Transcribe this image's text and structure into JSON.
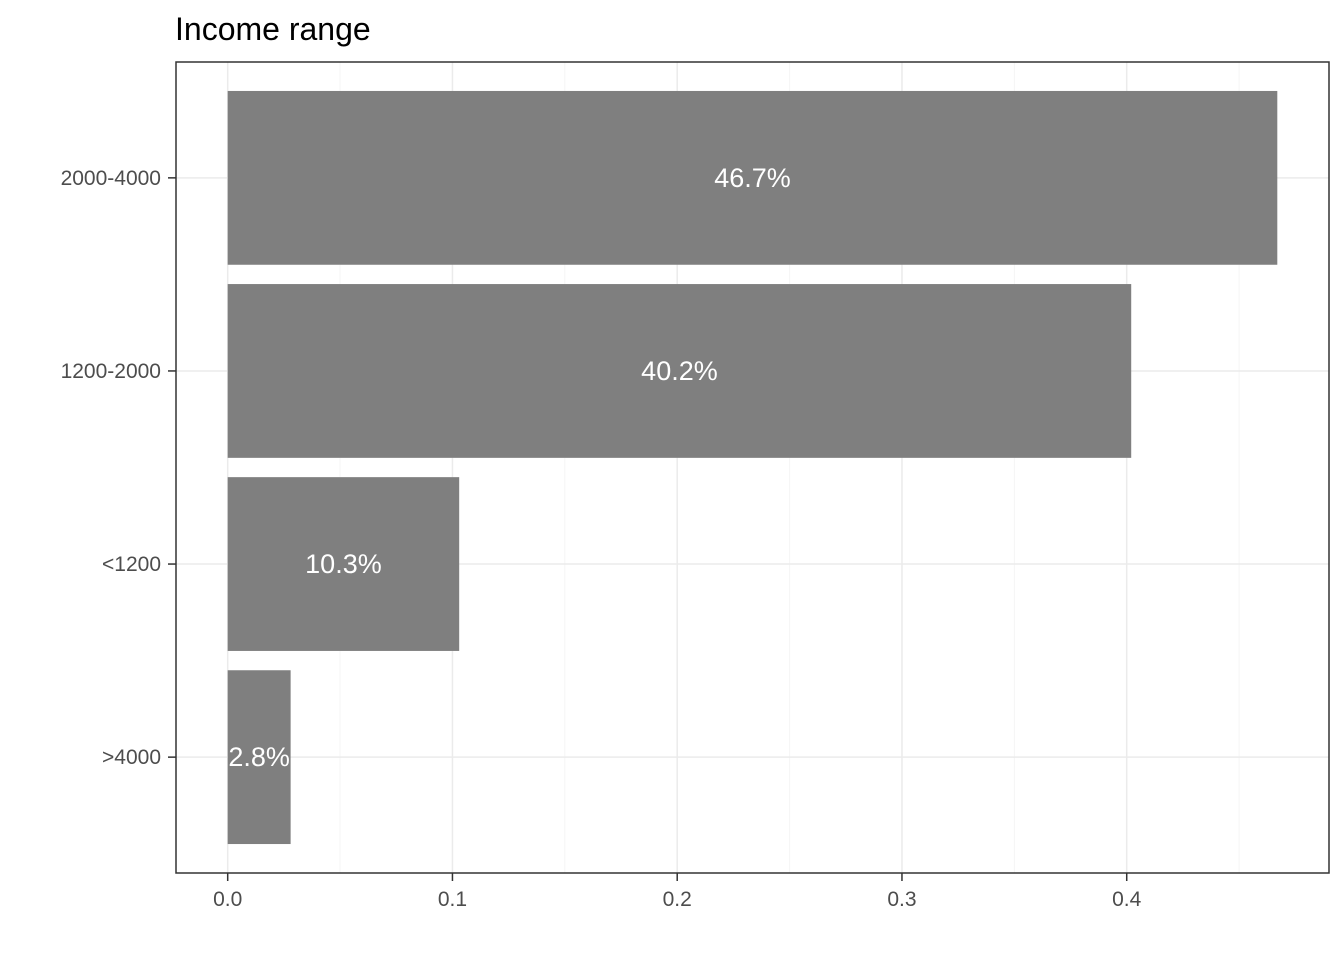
{
  "chart_data": {
    "type": "bar",
    "orientation": "horizontal",
    "title": "Income range",
    "xlabel": "",
    "ylabel": "",
    "categories": [
      "2000-4000",
      "1200-2000",
      "<1200",
      ">4000"
    ],
    "values": [
      0.467,
      0.402,
      0.103,
      0.028
    ],
    "value_labels": [
      "46.7%",
      "40.2%",
      "10.3%",
      "2.8%"
    ],
    "x_ticks": [
      0.0,
      0.1,
      0.2,
      0.3,
      0.4
    ],
    "x_tick_labels": [
      "0.0",
      "0.1",
      "0.2",
      "0.3",
      "0.4"
    ],
    "xlim": [
      -0.023,
      0.49
    ],
    "grid": true,
    "colors": {
      "bar": "#7f7f7f",
      "grid_major": "#ebebeb",
      "grid_minor": "#f5f5f5",
      "panel_border": "#333333",
      "bar_label": "#ffffff"
    }
  }
}
